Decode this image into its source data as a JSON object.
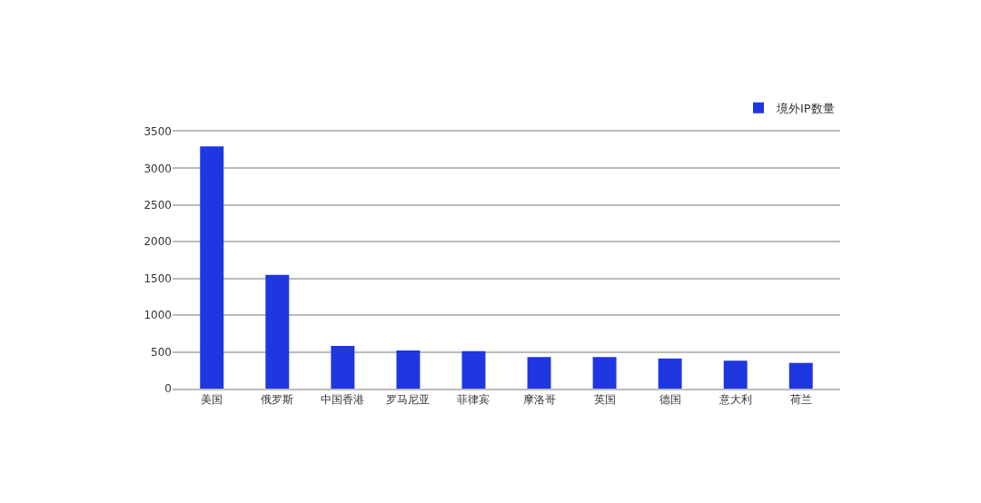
{
  "chart_data": {
    "type": "bar",
    "categories": [
      "美国",
      "俄罗斯",
      "中国香港",
      "罗马尼亚",
      "菲律宾",
      "摩洛哥",
      "英国",
      "德国",
      "意大利",
      "荷兰"
    ],
    "series": [
      {
        "name": "境外IP数量",
        "color": "#1f36e0",
        "values": [
          3300,
          1550,
          580,
          520,
          510,
          430,
          430,
          410,
          380,
          350
        ]
      }
    ],
    "ylim": [
      0,
      3500
    ],
    "yticks": [
      0,
      500,
      1000,
      1500,
      2000,
      2500,
      3000,
      3500
    ],
    "grid": "y",
    "legend": "top right"
  }
}
